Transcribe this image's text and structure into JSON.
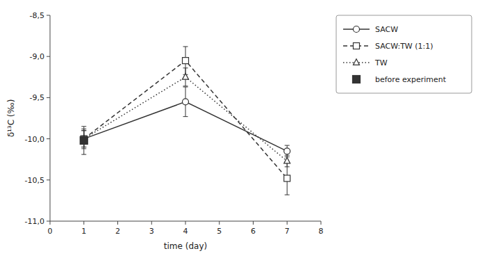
{
  "chart_data": {
    "type": "line",
    "x_label": "time (day)",
    "y_label": "δ¹³C (‰)",
    "xlim": [
      0,
      8
    ],
    "ylim": [
      -11.0,
      -8.5
    ],
    "xticks": [
      0,
      1,
      2,
      3,
      4,
      5,
      6,
      7,
      8
    ],
    "yticks": [
      {
        "value": -11.0,
        "label": "-11,0"
      },
      {
        "value": -10.5,
        "label": "-10,5"
      },
      {
        "value": -10.0,
        "label": "-10,0"
      },
      {
        "value": -9.5,
        "label": "-9,5"
      },
      {
        "value": -9.0,
        "label": "-9,0"
      },
      {
        "value": -8.5,
        "label": "-8,5"
      }
    ],
    "grid": false,
    "legend": "right",
    "color": "#333333",
    "series": [
      {
        "name": "SACW",
        "type": "line",
        "x": [
          1,
          4,
          7
        ],
        "values": [
          -10.0,
          -9.55,
          -10.15
        ],
        "errors": [
          0.12,
          0.18,
          0.07
        ],
        "marker": "circle",
        "line_style": "solid"
      },
      {
        "name": "SACW:TW (1:1)",
        "type": "line",
        "x": [
          1,
          4,
          7
        ],
        "values": [
          -10.0,
          -9.05,
          -10.48
        ],
        "errors": [
          0.1,
          0.17,
          0.2
        ],
        "marker": "square",
        "line_style": "dashed"
      },
      {
        "name": "TW",
        "type": "line",
        "x": [
          1,
          4,
          7
        ],
        "values": [
          -10.0,
          -9.25,
          -10.27
        ],
        "errors": [
          0.1,
          0.11,
          0.07
        ],
        "marker": "triangle",
        "line_style": "dotted"
      },
      {
        "name": "before experiment",
        "type": "scatter",
        "x": [
          1
        ],
        "values": [
          -10.02
        ],
        "errors": [
          0.17
        ],
        "marker": "square"
      }
    ]
  }
}
